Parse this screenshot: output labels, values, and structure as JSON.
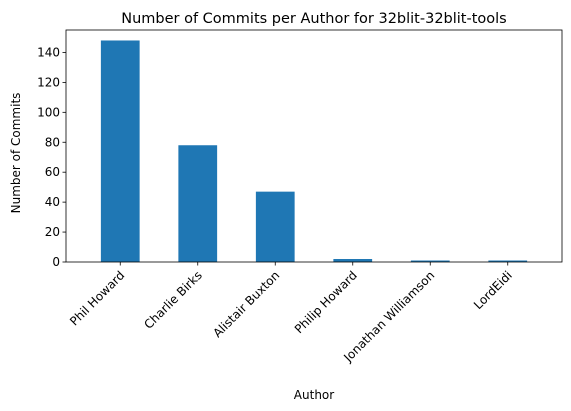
{
  "chart_data": {
    "type": "bar",
    "title": "Number of Commits per Author for 32blit-32blit-tools",
    "xlabel": "Author",
    "ylabel": "Number of Commits",
    "categories": [
      "Phil Howard",
      "Charlie Birks",
      "Alistair Buxton",
      "Philip Howard",
      "Jonathan Williamson",
      "LordEidi"
    ],
    "values": [
      148,
      78,
      47,
      2,
      1,
      1
    ],
    "ylim": [
      0,
      155
    ],
    "yticks": [
      0,
      20,
      40,
      60,
      80,
      100,
      120,
      140
    ],
    "bar_color": "#1f77b4",
    "grid": false,
    "legend": "none"
  }
}
